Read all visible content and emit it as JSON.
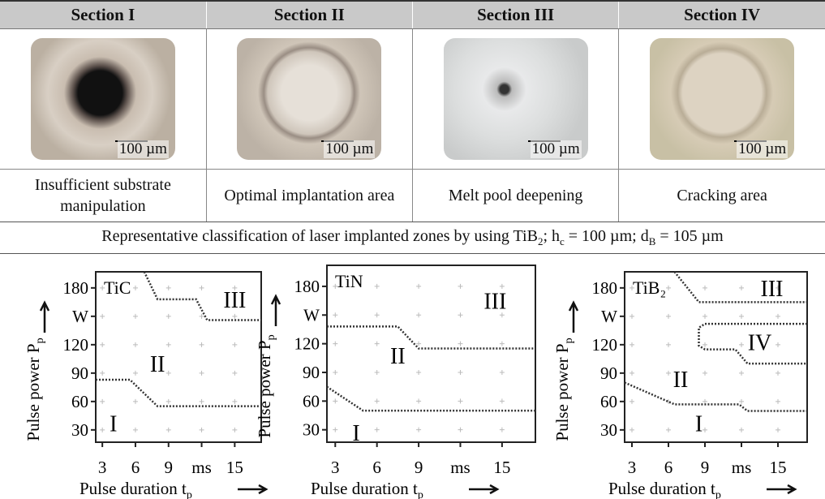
{
  "table": {
    "headers": [
      "Section I",
      "Section II",
      "Section III",
      "Section IV"
    ],
    "scale_bars": [
      "100 µm",
      "100 µm",
      "100 µm",
      "100 µm"
    ],
    "descriptions": [
      "Insufficient substrate manipulation",
      "Optimal implantation area",
      "Melt pool deepening",
      "Cracking area"
    ],
    "caption": [
      "Representative classification of laser implanted zones by using TiB",
      "2",
      "; h",
      "c",
      " = 100 µm; d",
      "B",
      " = 105 µm"
    ]
  },
  "charts": [
    {
      "type": "line",
      "material": "TiC",
      "y_label": {
        "text": "Pulse power P",
        "sub": "p"
      },
      "x_label": {
        "text": "Pulse duration t",
        "sub": "p"
      },
      "xlim": [
        2.4,
        17.4
      ],
      "ylim": [
        17,
        197
      ],
      "xticks": [
        3,
        6,
        9,
        {
          "value": 12,
          "label": "ms"
        },
        15
      ],
      "yticks": [
        30,
        60,
        90,
        120,
        {
          "value": 150,
          "label": "W"
        },
        180
      ],
      "boundaries": [
        {
          "x": [
            2.4,
            5.5,
            8,
            17.4
          ],
          "y": [
            83,
            83,
            55,
            55
          ]
        },
        {
          "x": [
            6.8,
            8,
            11.5,
            12.5,
            17.4
          ],
          "y": [
            197,
            168,
            168,
            146,
            146
          ]
        }
      ],
      "regions": [
        {
          "label": "III",
          "x": 15,
          "y": 168
        },
        {
          "label": "II",
          "x": 8,
          "y": 100
        },
        {
          "label": "I",
          "x": 4,
          "y": 37
        }
      ]
    },
    {
      "type": "line",
      "material": "TiN",
      "y_label": {
        "text": "Pulse power P",
        "sub": "p"
      },
      "x_label": {
        "text": "Pulse duration t",
        "sub": "p"
      },
      "xlim": [
        2.4,
        17.4
      ],
      "ylim": [
        17,
        202
      ],
      "xticks": [
        3,
        6,
        9,
        {
          "value": 12,
          "label": "ms"
        },
        15
      ],
      "yticks": [
        30,
        60,
        90,
        120,
        {
          "value": 150,
          "label": "W"
        },
        180
      ],
      "boundaries": [
        {
          "x": [
            2.4,
            7.5,
            9,
            17.4
          ],
          "y": [
            138,
            138,
            115,
            115
          ]
        },
        {
          "x": [
            2.4,
            5,
            17.4
          ],
          "y": [
            75,
            50,
            50
          ]
        }
      ],
      "regions": [
        {
          "label": "III",
          "x": 14.5,
          "y": 165
        },
        {
          "label": "II",
          "x": 7.5,
          "y": 108
        },
        {
          "label": "I",
          "x": 4.5,
          "y": 27
        }
      ]
    },
    {
      "type": "line",
      "material": "TiB₂",
      "y_label": {
        "text": "Pulse power P",
        "sub": "p"
      },
      "x_label": {
        "text": "Pulse duration t",
        "sub": "p"
      },
      "xlim": [
        2.4,
        17.4
      ],
      "ylim": [
        17,
        197
      ],
      "xticks": [
        3,
        6,
        9,
        {
          "value": 12,
          "label": "ms"
        },
        15
      ],
      "yticks": [
        30,
        60,
        90,
        120,
        {
          "value": 150,
          "label": "W"
        },
        180
      ],
      "boundaries": [
        {
          "x": [
            6.5,
            8.5,
            17.4
          ],
          "y": [
            197,
            165,
            165
          ]
        },
        {
          "x": [
            17.4,
            9,
            8.5,
            8.5,
            9,
            11.5,
            12.5,
            17.4
          ],
          "y": [
            142,
            142,
            138,
            119,
            115,
            115,
            100,
            100
          ]
        },
        {
          "x": [
            2.4,
            6.5,
            11.8,
            12.5,
            17.4
          ],
          "y": [
            80,
            57,
            57,
            50,
            50
          ]
        }
      ],
      "regions": [
        {
          "label": "III",
          "x": 14.5,
          "y": 180
        },
        {
          "label": "IV",
          "x": 13.5,
          "y": 123
        },
        {
          "label": "II",
          "x": 7,
          "y": 84
        },
        {
          "label": "I",
          "x": 8.5,
          "y": 37
        }
      ]
    }
  ]
}
